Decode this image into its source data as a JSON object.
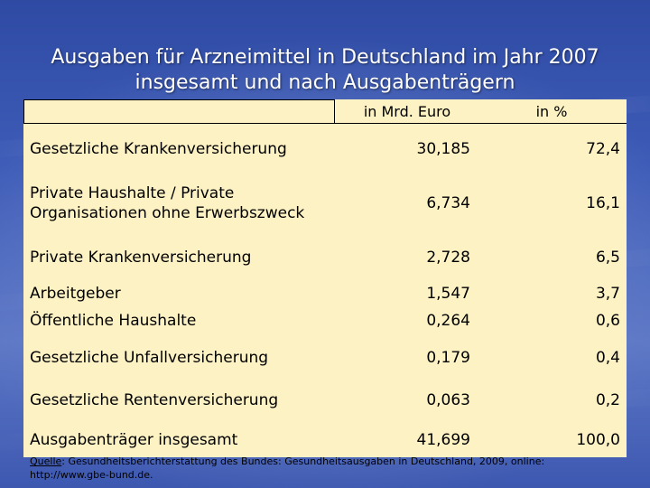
{
  "title": "Ausgaben für Arzneimittel in Deutschland im Jahr 2007 insgesamt und nach Ausgabenträgern",
  "columns": {
    "mrd": "in Mrd. Euro",
    "pct": "in %"
  },
  "rows": [
    {
      "label": "Gesetzliche Krankenversicherung",
      "mrd": "30,185",
      "pct": "72,4"
    },
    {
      "label": "Private Haushalte / Private Organisationen ohne Erwerbszweck",
      "mrd": "6,734",
      "pct": "16,1"
    },
    {
      "label": "Private Krankenversicherung",
      "mrd": "2,728",
      "pct": "6,5"
    },
    {
      "label": "Arbeitgeber",
      "mrd": "1,547",
      "pct": "3,7"
    },
    {
      "label": "Öffentliche Haushalte",
      "mrd": "0,264",
      "pct": "0,6"
    },
    {
      "label": "Gesetzliche Unfallversicherung",
      "mrd": "0,179",
      "pct": "0,4"
    },
    {
      "label": "Gesetzliche Rentenversicherung",
      "mrd": "0,063",
      "pct": "0,2"
    },
    {
      "label": "Ausgabenträger insgesamt",
      "mrd": "41,699",
      "pct": "100,0"
    }
  ],
  "source": {
    "label": "Quelle",
    "text": ": Gesundheitsberichterstattung des Bundes: Gesundheitsausgaben in Deutschland, 2009, online: http://www.gbe-bund.de."
  }
}
